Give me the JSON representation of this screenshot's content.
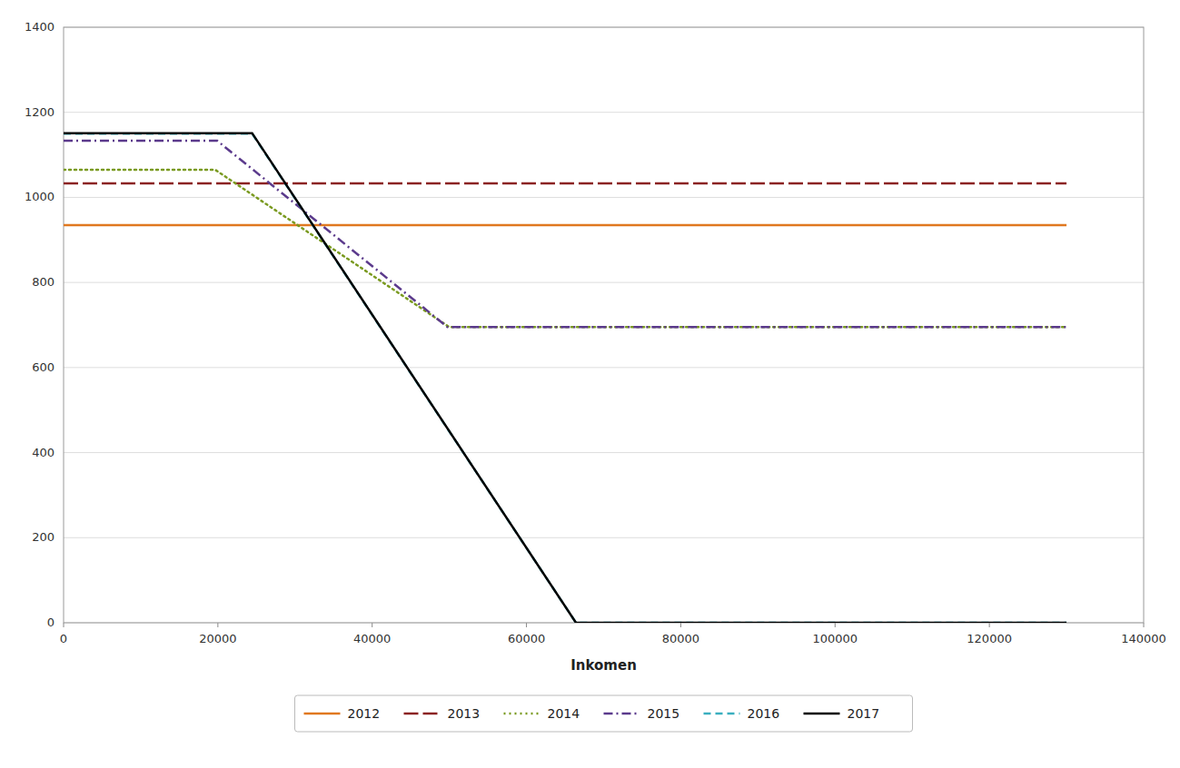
{
  "chart_data": {
    "type": "line",
    "xlabel": "Inkomen",
    "xlim": [
      0,
      140000
    ],
    "ylim": [
      0,
      1400
    ],
    "xticks": [
      0,
      20000,
      40000,
      60000,
      80000,
      100000,
      120000,
      140000
    ],
    "yticks": [
      0,
      200,
      400,
      600,
      800,
      1000,
      1200,
      1400
    ],
    "grid": true,
    "legend": "bottom",
    "series": [
      {
        "name": "2012",
        "color": "#E07820",
        "line_style": "solid",
        "x": [
          0,
          130000
        ],
        "values": [
          935,
          935
        ]
      },
      {
        "name": "2013",
        "color": "#8B2323",
        "line_style": "longdash",
        "x": [
          0,
          130000
        ],
        "values": [
          1033,
          1033
        ]
      },
      {
        "name": "2014",
        "color": "#7A9A20",
        "line_style": "dotted",
        "x": [
          0,
          19645,
          50000,
          130000
        ],
        "values": [
          1065,
          1065,
          695,
          695
        ]
      },
      {
        "name": "2015",
        "color": "#5B3A8C",
        "line_style": "dashdot",
        "x": [
          0,
          19922,
          49770,
          130000
        ],
        "values": [
          1133,
          1133,
          695,
          695
        ]
      },
      {
        "name": "2016",
        "color": "#3AAFBF",
        "line_style": "dashed",
        "x": [
          0,
          24437,
          66417,
          130000
        ],
        "values": [
          1150,
          1150,
          0,
          0
        ]
      },
      {
        "name": "2017",
        "color": "#000000",
        "line_style": "solid",
        "x": [
          0,
          24437,
          66417,
          130000
        ],
        "values": [
          1151,
          1151,
          0,
          0
        ]
      }
    ]
  }
}
